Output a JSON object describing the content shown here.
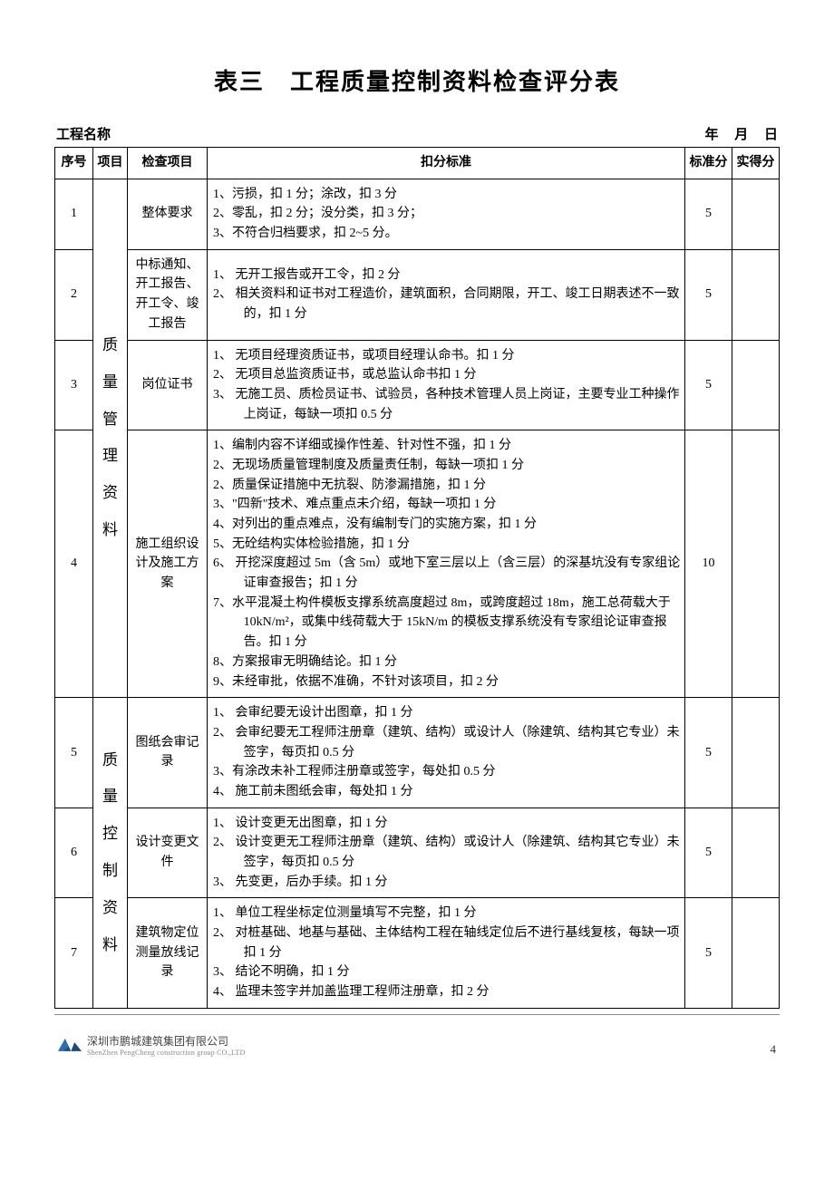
{
  "title": "表三　工程质量控制资料检查评分表",
  "header": {
    "project_label": "工程名称",
    "date_year": "年",
    "date_month": "月",
    "date_day": "日"
  },
  "columns": {
    "seq": "序号",
    "category": "项目",
    "item": "检查项目",
    "criteria": "扣分标准",
    "standard": "标准分",
    "score": "实得分"
  },
  "category1": "质\n量\n管\n理\n资\n料",
  "category2": "质\n量\n控\n制\n资\n料",
  "rows": [
    {
      "seq": "1",
      "item": "整体要求",
      "criteria": [
        "1、污损，扣 1 分；涂改，扣 3 分",
        "2、零乱，扣 2 分；没分类，扣 3 分；",
        "3、不符合归档要求，扣 2~5 分。"
      ],
      "standard": "5"
    },
    {
      "seq": "2",
      "item": "中标通知、开工报告、开工令、竣工报告",
      "criteria": [
        "1、 无开工报告或开工令，扣 2 分",
        "2、 相关资料和证书对工程造价，建筑面积，合同期限，开工、竣工日期表述不一致的，扣 1 分"
      ],
      "standard": "5"
    },
    {
      "seq": "3",
      "item": "岗位证书",
      "criteria": [
        "1、 无项目经理资质证书，或项目经理认命书。扣 1 分",
        "2、 无项目总监资质证书，或总监认命书扣 1 分",
        "3、 无施工员、质检员证书、试验员，各种技术管理人员上岗证，主要专业工种操作上岗证，每缺一项扣 0.5 分"
      ],
      "standard": "5"
    },
    {
      "seq": "4",
      "item": "施工组织设计及施工方案",
      "criteria": [
        "1、编制内容不详细或操作性差、针对性不强，扣 1 分",
        "2、无现场质量管理制度及质量责任制，每缺一项扣 1 分",
        "2、质量保证措施中无抗裂、防渗漏措施，扣 1 分",
        "3、\"四新\"技术、难点重点未介绍，每缺一项扣 1 分",
        "4、对列出的重点难点，没有编制专门的实施方案，扣 1 分",
        "5、无砼结构实体检验措施，扣 1 分",
        "6、 开挖深度超过 5m（含 5m）或地下室三层以上（含三层）的深基坑没有专家组论证审查报告；扣 1 分",
        "7、水平混凝土构件模板支撑系统高度超过 8m，或跨度超过 18m，施工总荷载大于 10kN/m²，或集中线荷载大于 15kN/m 的模板支撑系统没有专家组论证审查报告。扣 1 分",
        "8、方案报审无明确结论。扣 1 分",
        "9、未经审批，依据不准确，不针对该项目，扣 2 分"
      ],
      "standard": "10"
    },
    {
      "seq": "5",
      "item": "图纸会审记录",
      "criteria": [
        "1、 会审纪要无设计出图章，扣 1 分",
        "2、 会审纪要无工程师注册章（建筑、结构）或设计人（除建筑、结构其它专业）未签字，每页扣 0.5 分",
        "3、有涂改未补工程师注册章或签字，每处扣 0.5 分",
        "4、 施工前未图纸会审，每处扣 1 分"
      ],
      "standard": "5"
    },
    {
      "seq": "6",
      "item": "设计变更文件",
      "criteria": [
        "1、 设计变更无出图章，扣 1 分",
        "2、 设计变更无工程师注册章（建筑、结构）或设计人（除建筑、结构其它专业）未签字，每页扣 0.5 分",
        "3、 先变更，后办手续。扣 1 分"
      ],
      "standard": "5"
    },
    {
      "seq": "7",
      "item": "建筑物定位测量放线记录",
      "criteria": [
        "1、 单位工程坐标定位测量填写不完整，扣 1 分",
        "2、 对桩基础、地基与基础、主体结构工程在轴线定位后不进行基线复核，每缺一项扣 1 分",
        "3、 结论不明确，扣 1 分",
        "4、 监理未签字并加盖监理工程师注册章，扣 2 分"
      ],
      "standard": "5"
    }
  ],
  "footer": {
    "company_cn": "深圳市鹏城建筑集团有限公司",
    "company_en": "ShenZhen PengCheng construction group CO.,LTD",
    "page": "4"
  }
}
